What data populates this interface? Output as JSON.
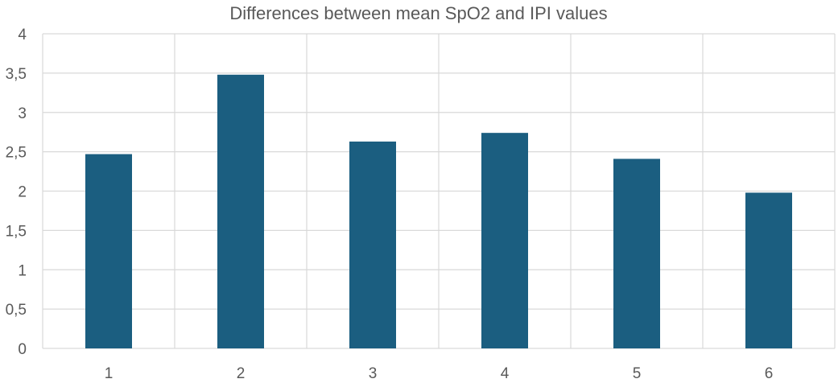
{
  "chart_data": {
    "type": "bar",
    "title": "Differences between mean SpO2 and IPI values",
    "xlabel": "",
    "ylabel": "",
    "categories": [
      "1",
      "2",
      "3",
      "4",
      "5",
      "6"
    ],
    "values": [
      2.47,
      3.48,
      2.63,
      2.74,
      2.41,
      1.98
    ],
    "ylim": [
      0,
      4
    ],
    "yticks": [
      0,
      0.5,
      1,
      1.5,
      2,
      2.5,
      3,
      3.5,
      4
    ],
    "ytick_labels": [
      "0",
      "0,5",
      "1",
      "1,5",
      "2",
      "2,5",
      "3",
      "3,5",
      "4"
    ],
    "grid": "horizontal and vertical",
    "legend": "none",
    "bar_color": "#1b5e80",
    "grid_color": "#d9d9d9",
    "text_color": "#595959"
  }
}
